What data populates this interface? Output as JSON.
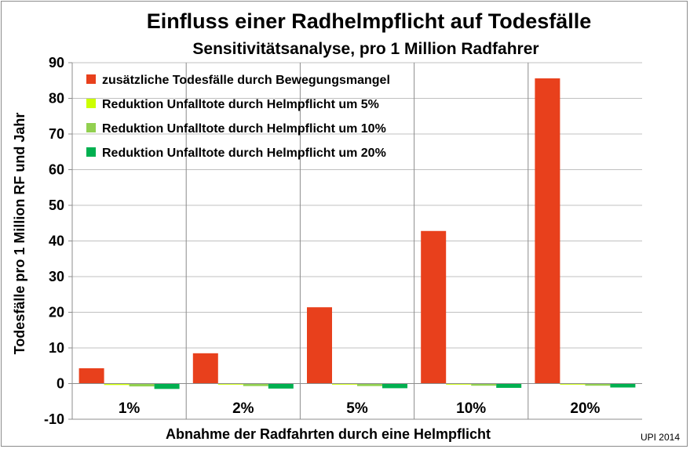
{
  "chart_data": {
    "type": "bar",
    "title": "Einfluss einer Radhelmpflicht auf Todesfälle",
    "subtitle": "Sensitivitätsanalyse,  pro 1 Million Radfahrer",
    "xlabel": "Abnahme der Radfahrten durch eine Helmpflicht",
    "ylabel": "Todesfälle  pro 1 Million  RF und Jahr",
    "ylim": [
      -10,
      90
    ],
    "yticks": [
      "-10",
      "0",
      "10",
      "20",
      "30",
      "40",
      "50",
      "60",
      "70",
      "80",
      "90"
    ],
    "ytick_values": [
      -10,
      0,
      10,
      20,
      30,
      40,
      50,
      60,
      70,
      80,
      90
    ],
    "categories": [
      "1%",
      "2%",
      "5%",
      "10%",
      "20%"
    ],
    "series": [
      {
        "name": "zusätzliche Todesfälle durch Bewegungsmangel",
        "color": "#e8401c",
        "values": [
          4.3,
          8.5,
          21.4,
          42.8,
          85.6
        ]
      },
      {
        "name": "Reduktion Unfalltote durch Helmpflicht um 5%",
        "color": "#ccff00",
        "values": [
          -0.4,
          -0.3,
          -0.3,
          -0.3,
          -0.3
        ]
      },
      {
        "name": "Reduktion Unfalltote durch Helmpflicht um 10%",
        "color": "#92d050",
        "values": [
          -0.8,
          -0.7,
          -0.7,
          -0.6,
          -0.6
        ]
      },
      {
        "name": "Reduktion Unfalltote durch Helmpflicht um 20%",
        "color": "#00b050",
        "values": [
          -1.5,
          -1.4,
          -1.3,
          -1.2,
          -1.1
        ]
      }
    ],
    "grid": {
      "horizontal": true,
      "vertical": true
    },
    "legend": "top-left"
  },
  "credit": "UPI 2014"
}
